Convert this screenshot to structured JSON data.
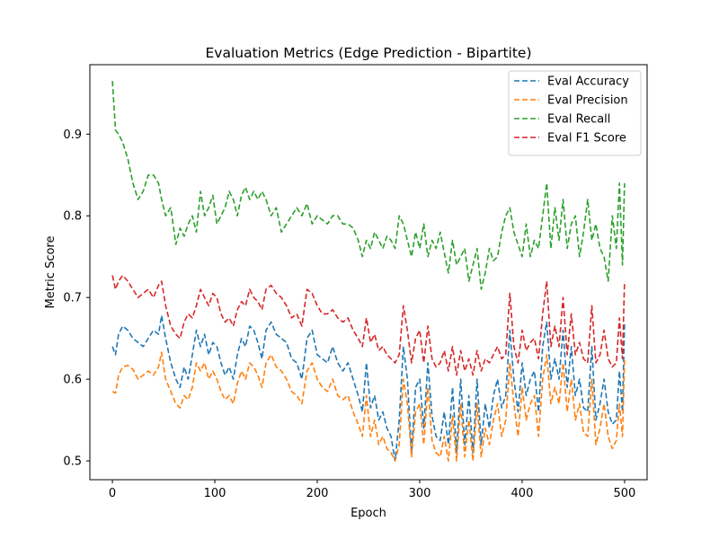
{
  "chart_data": {
    "type": "line",
    "title": "Evaluation Metrics (Edge Prediction - Bipartite)",
    "xlabel": "Epoch",
    "ylabel": "Metric Score",
    "xlim": [
      -22,
      522
    ],
    "ylim": [
      0.477,
      0.985
    ],
    "xticks": [
      0,
      100,
      200,
      300,
      400,
      500
    ],
    "yticks": [
      0.5,
      0.6,
      0.7,
      0.8,
      0.9
    ],
    "grid": false,
    "legend_position": "top-right",
    "line_style": "dashed",
    "series": [
      {
        "name": "Eval Accuracy",
        "color": "#1f77b4",
        "x": [
          0,
          3,
          6,
          10,
          15,
          20,
          25,
          30,
          35,
          40,
          45,
          48,
          52,
          57,
          62,
          66,
          70,
          74,
          78,
          82,
          86,
          90,
          94,
          98,
          102,
          106,
          110,
          114,
          118,
          122,
          126,
          130,
          134,
          138,
          142,
          146,
          150,
          155,
          160,
          165,
          170,
          175,
          180,
          185,
          190,
          195,
          200,
          205,
          210,
          215,
          220,
          225,
          230,
          235,
          240,
          244,
          248,
          252,
          256,
          260,
          264,
          268,
          272,
          276,
          280,
          284,
          288,
          292,
          296,
          300,
          304,
          308,
          312,
          316,
          320,
          324,
          328,
          332,
          336,
          340,
          344,
          348,
          352,
          356,
          360,
          364,
          368,
          372,
          376,
          380,
          384,
          388,
          392,
          396,
          400,
          404,
          408,
          412,
          416,
          420,
          424,
          428,
          432,
          436,
          440,
          444,
          448,
          452,
          456,
          460,
          464,
          468,
          472,
          476,
          480,
          484,
          488,
          492,
          495,
          498,
          500
        ],
        "values": [
          0.64,
          0.63,
          0.655,
          0.665,
          0.66,
          0.65,
          0.645,
          0.64,
          0.65,
          0.66,
          0.655,
          0.678,
          0.65,
          0.62,
          0.6,
          0.59,
          0.615,
          0.6,
          0.63,
          0.66,
          0.64,
          0.655,
          0.63,
          0.645,
          0.64,
          0.62,
          0.605,
          0.615,
          0.6,
          0.63,
          0.65,
          0.64,
          0.665,
          0.66,
          0.645,
          0.625,
          0.66,
          0.67,
          0.655,
          0.65,
          0.645,
          0.625,
          0.62,
          0.6,
          0.65,
          0.66,
          0.63,
          0.625,
          0.62,
          0.64,
          0.62,
          0.61,
          0.62,
          0.6,
          0.58,
          0.56,
          0.62,
          0.565,
          0.58,
          0.55,
          0.56,
          0.54,
          0.53,
          0.5,
          0.55,
          0.64,
          0.6,
          0.51,
          0.59,
          0.6,
          0.54,
          0.62,
          0.555,
          0.53,
          0.525,
          0.56,
          0.52,
          0.59,
          0.51,
          0.6,
          0.52,
          0.58,
          0.51,
          0.6,
          0.52,
          0.57,
          0.54,
          0.58,
          0.6,
          0.565,
          0.58,
          0.66,
          0.6,
          0.56,
          0.62,
          0.58,
          0.6,
          0.61,
          0.56,
          0.64,
          0.67,
          0.6,
          0.625,
          0.6,
          0.66,
          0.59,
          0.64,
          0.58,
          0.6,
          0.565,
          0.56,
          0.64,
          0.55,
          0.57,
          0.6,
          0.56,
          0.545,
          0.55,
          0.61,
          0.56,
          0.67
        ]
      },
      {
        "name": "Eval Precision",
        "color": "#ff7f0e",
        "x": [
          0,
          3,
          6,
          10,
          15,
          20,
          25,
          30,
          35,
          40,
          45,
          48,
          52,
          57,
          62,
          66,
          70,
          74,
          78,
          82,
          86,
          90,
          94,
          98,
          102,
          106,
          110,
          114,
          118,
          122,
          126,
          130,
          134,
          138,
          142,
          146,
          150,
          155,
          160,
          165,
          170,
          175,
          180,
          185,
          190,
          195,
          200,
          205,
          210,
          215,
          220,
          225,
          230,
          235,
          240,
          244,
          248,
          252,
          256,
          260,
          264,
          268,
          272,
          276,
          280,
          284,
          288,
          292,
          296,
          300,
          304,
          308,
          312,
          316,
          320,
          324,
          328,
          332,
          336,
          340,
          344,
          348,
          352,
          356,
          360,
          364,
          368,
          372,
          376,
          380,
          384,
          388,
          392,
          396,
          400,
          404,
          408,
          412,
          416,
          420,
          424,
          428,
          432,
          436,
          440,
          444,
          448,
          452,
          456,
          460,
          464,
          468,
          472,
          476,
          480,
          484,
          488,
          492,
          495,
          498,
          500
        ],
        "values": [
          0.585,
          0.583,
          0.605,
          0.615,
          0.617,
          0.612,
          0.6,
          0.605,
          0.61,
          0.605,
          0.615,
          0.633,
          0.6,
          0.585,
          0.57,
          0.565,
          0.58,
          0.575,
          0.59,
          0.62,
          0.61,
          0.62,
          0.6,
          0.61,
          0.6,
          0.585,
          0.575,
          0.58,
          0.57,
          0.595,
          0.61,
          0.6,
          0.62,
          0.615,
          0.605,
          0.59,
          0.62,
          0.63,
          0.615,
          0.61,
          0.6,
          0.585,
          0.58,
          0.57,
          0.61,
          0.62,
          0.6,
          0.59,
          0.585,
          0.6,
          0.58,
          0.575,
          0.58,
          0.56,
          0.545,
          0.53,
          0.58,
          0.53,
          0.55,
          0.52,
          0.53,
          0.515,
          0.51,
          0.5,
          0.52,
          0.6,
          0.57,
          0.505,
          0.56,
          0.57,
          0.52,
          0.59,
          0.525,
          0.51,
          0.505,
          0.53,
          0.5,
          0.555,
          0.5,
          0.57,
          0.505,
          0.55,
          0.5,
          0.57,
          0.505,
          0.54,
          0.52,
          0.55,
          0.57,
          0.53,
          0.55,
          0.62,
          0.57,
          0.53,
          0.59,
          0.55,
          0.57,
          0.58,
          0.53,
          0.6,
          0.63,
          0.57,
          0.59,
          0.57,
          0.62,
          0.56,
          0.6,
          0.55,
          0.57,
          0.535,
          0.53,
          0.6,
          0.52,
          0.54,
          0.57,
          0.53,
          0.515,
          0.525,
          0.57,
          0.53,
          0.625
        ]
      },
      {
        "name": "Eval Recall",
        "color": "#2ca02c",
        "x": [
          0,
          3,
          6,
          10,
          15,
          20,
          25,
          30,
          35,
          40,
          45,
          48,
          52,
          57,
          62,
          66,
          70,
          74,
          78,
          82,
          86,
          90,
          94,
          98,
          102,
          106,
          110,
          114,
          118,
          122,
          126,
          130,
          134,
          138,
          142,
          146,
          150,
          155,
          160,
          165,
          170,
          175,
          180,
          185,
          190,
          195,
          200,
          205,
          210,
          215,
          220,
          225,
          230,
          235,
          240,
          244,
          248,
          252,
          256,
          260,
          264,
          268,
          272,
          276,
          280,
          284,
          288,
          292,
          296,
          300,
          304,
          308,
          312,
          316,
          320,
          324,
          328,
          332,
          336,
          340,
          344,
          348,
          352,
          356,
          360,
          364,
          368,
          372,
          376,
          380,
          384,
          388,
          392,
          396,
          400,
          404,
          408,
          412,
          416,
          420,
          424,
          428,
          432,
          436,
          440,
          444,
          448,
          452,
          456,
          460,
          464,
          468,
          472,
          476,
          480,
          484,
          488,
          492,
          495,
          498,
          500
        ],
        "values": [
          0.965,
          0.905,
          0.9,
          0.89,
          0.87,
          0.84,
          0.82,
          0.83,
          0.85,
          0.85,
          0.84,
          0.82,
          0.8,
          0.81,
          0.765,
          0.785,
          0.775,
          0.79,
          0.8,
          0.78,
          0.83,
          0.8,
          0.81,
          0.825,
          0.79,
          0.8,
          0.81,
          0.83,
          0.82,
          0.8,
          0.825,
          0.835,
          0.82,
          0.83,
          0.82,
          0.83,
          0.82,
          0.8,
          0.81,
          0.78,
          0.79,
          0.8,
          0.81,
          0.8,
          0.815,
          0.79,
          0.8,
          0.795,
          0.79,
          0.8,
          0.8,
          0.79,
          0.79,
          0.785,
          0.77,
          0.75,
          0.77,
          0.76,
          0.78,
          0.77,
          0.76,
          0.775,
          0.77,
          0.76,
          0.8,
          0.79,
          0.77,
          0.75,
          0.78,
          0.76,
          0.79,
          0.75,
          0.77,
          0.76,
          0.78,
          0.755,
          0.73,
          0.77,
          0.74,
          0.75,
          0.76,
          0.72,
          0.74,
          0.76,
          0.71,
          0.73,
          0.76,
          0.745,
          0.75,
          0.78,
          0.8,
          0.81,
          0.78,
          0.765,
          0.75,
          0.79,
          0.75,
          0.77,
          0.76,
          0.8,
          0.84,
          0.76,
          0.81,
          0.77,
          0.82,
          0.76,
          0.79,
          0.8,
          0.75,
          0.78,
          0.82,
          0.77,
          0.79,
          0.76,
          0.75,
          0.72,
          0.8,
          0.76,
          0.84,
          0.74,
          0.84
        ]
      },
      {
        "name": "Eval F1 Score",
        "color": "#d62728",
        "x": [
          0,
          3,
          6,
          10,
          15,
          20,
          25,
          30,
          35,
          40,
          45,
          48,
          52,
          57,
          62,
          66,
          70,
          74,
          78,
          82,
          86,
          90,
          94,
          98,
          102,
          106,
          110,
          114,
          118,
          122,
          126,
          130,
          134,
          138,
          142,
          146,
          150,
          155,
          160,
          165,
          170,
          175,
          180,
          185,
          190,
          195,
          200,
          205,
          210,
          215,
          220,
          225,
          230,
          235,
          240,
          244,
          248,
          252,
          256,
          260,
          264,
          268,
          272,
          276,
          280,
          284,
          288,
          292,
          296,
          300,
          304,
          308,
          312,
          316,
          320,
          324,
          328,
          332,
          336,
          340,
          344,
          348,
          352,
          356,
          360,
          364,
          368,
          372,
          376,
          380,
          384,
          388,
          392,
          396,
          400,
          404,
          408,
          412,
          416,
          420,
          424,
          428,
          432,
          436,
          440,
          444,
          448,
          452,
          456,
          460,
          464,
          468,
          472,
          476,
          480,
          484,
          488,
          492,
          495,
          498,
          500
        ],
        "values": [
          0.727,
          0.71,
          0.72,
          0.727,
          0.72,
          0.71,
          0.7,
          0.705,
          0.71,
          0.7,
          0.715,
          0.72,
          0.69,
          0.665,
          0.655,
          0.65,
          0.67,
          0.68,
          0.675,
          0.69,
          0.71,
          0.7,
          0.69,
          0.705,
          0.7,
          0.68,
          0.67,
          0.675,
          0.665,
          0.685,
          0.695,
          0.69,
          0.71,
          0.7,
          0.695,
          0.685,
          0.71,
          0.715,
          0.705,
          0.7,
          0.69,
          0.675,
          0.68,
          0.665,
          0.71,
          0.705,
          0.69,
          0.68,
          0.68,
          0.685,
          0.675,
          0.67,
          0.675,
          0.66,
          0.65,
          0.64,
          0.675,
          0.645,
          0.655,
          0.635,
          0.64,
          0.63,
          0.625,
          0.62,
          0.63,
          0.69,
          0.66,
          0.62,
          0.65,
          0.66,
          0.62,
          0.665,
          0.625,
          0.615,
          0.62,
          0.635,
          0.61,
          0.64,
          0.605,
          0.635,
          0.61,
          0.625,
          0.605,
          0.635,
          0.61,
          0.625,
          0.62,
          0.63,
          0.64,
          0.625,
          0.63,
          0.705,
          0.64,
          0.62,
          0.66,
          0.635,
          0.645,
          0.65,
          0.625,
          0.68,
          0.72,
          0.64,
          0.665,
          0.64,
          0.7,
          0.63,
          0.68,
          0.63,
          0.645,
          0.625,
          0.62,
          0.69,
          0.62,
          0.63,
          0.66,
          0.625,
          0.615,
          0.62,
          0.675,
          0.625,
          0.72
        ]
      }
    ]
  }
}
